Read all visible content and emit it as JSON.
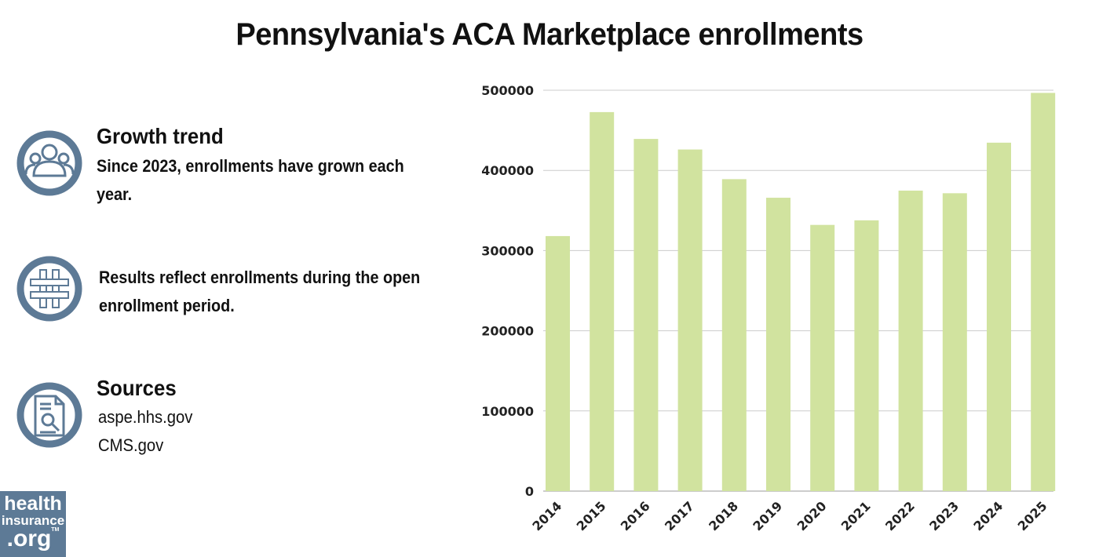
{
  "title": "Pennsylvania's ACA Marketplace enrollments",
  "info": [
    {
      "icon": "people-icon",
      "heading": "Growth trend",
      "text": "Since 2023, enrollments have grown each year."
    },
    {
      "icon": "hashtag-icon",
      "text": "Results reflect enrollments during the open enrollment period."
    },
    {
      "icon": "document-search-icon",
      "heading": "Sources",
      "lines": [
        "aspe.hhs.gov",
        "CMS.gov"
      ]
    }
  ],
  "logo": {
    "line1": "health",
    "line2": "insurance",
    "line3": ".org",
    "tm": "TM"
  },
  "colors": {
    "bar": "#d1e39f",
    "icon": "#5d7a96",
    "grid": "#cccccc"
  },
  "chart_data": {
    "type": "bar",
    "title": "Pennsylvania's ACA Marketplace enrollments",
    "categories": [
      "2014",
      "2015",
      "2016",
      "2017",
      "2018",
      "2019",
      "2020",
      "2021",
      "2022",
      "2023",
      "2024",
      "2025"
    ],
    "values": [
      318077,
      472697,
      439238,
      426059,
      389081,
      365888,
      332012,
      337722,
      374776,
      371516,
      434571,
      496661
    ],
    "ylim": [
      0,
      500000
    ],
    "yticks": [
      "0",
      "100000",
      "200000",
      "300000",
      "400000",
      "500000"
    ],
    "grid": true,
    "xlabel": "",
    "ylabel": ""
  }
}
